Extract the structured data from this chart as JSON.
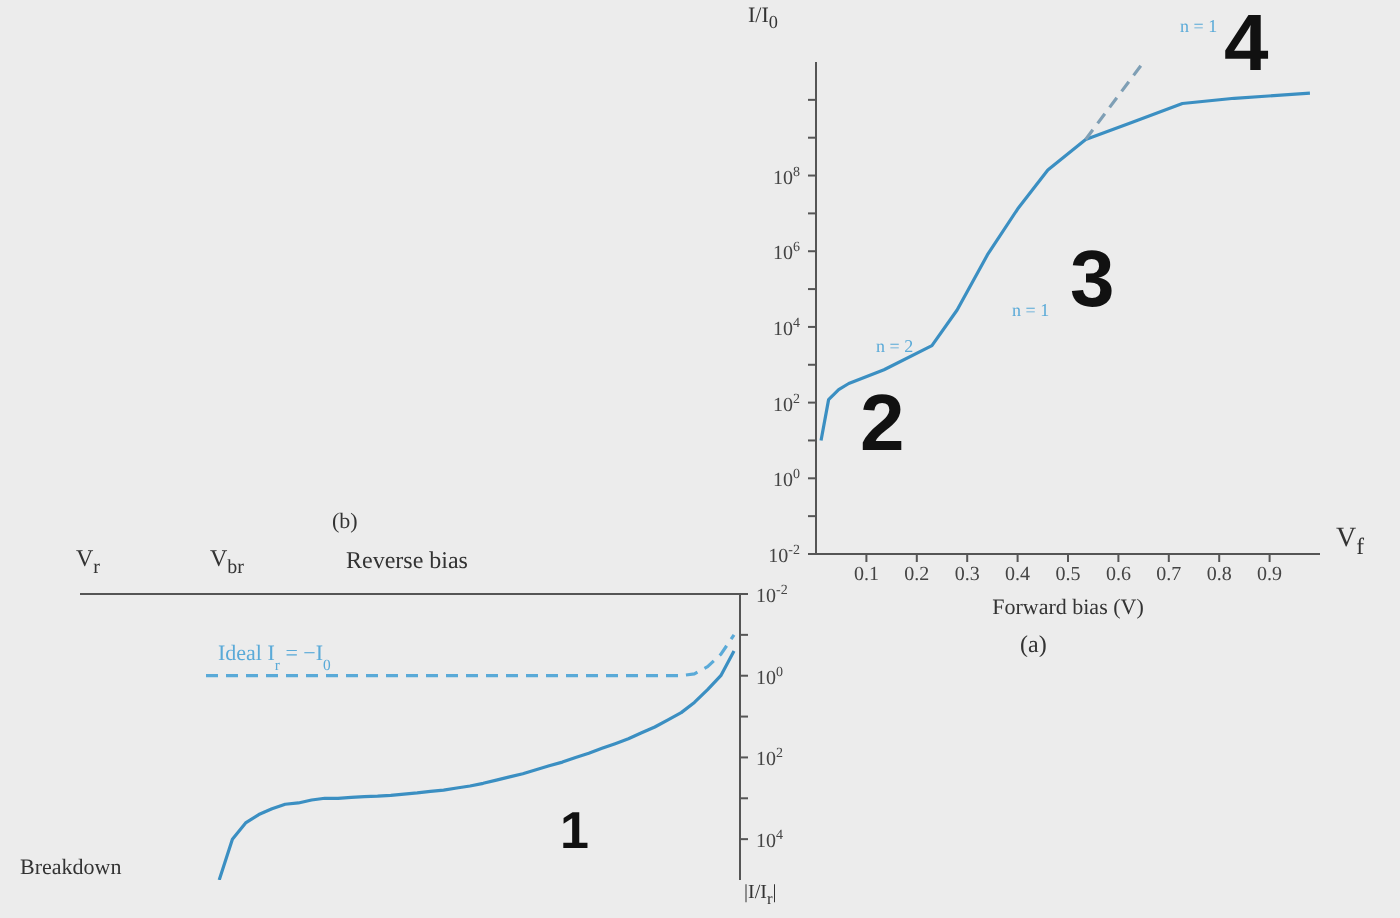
{
  "chart_data": [
    {
      "type": "line",
      "ylabel": "I/I$_{0}$",
      "xlabel": "Forward bias (V)",
      "log": "y",
      "xlim": [
        0,
        1
      ],
      "ylim": [
        0.01,
        100000000000
      ],
      "xticks": [
        0.1,
        0.2,
        0.3,
        0.4,
        0.5,
        0.6,
        0.7,
        0.8,
        0.9
      ],
      "yticks": [
        {
          "value": 0.01,
          "label": "10$^{-2}$"
        },
        {
          "value": 0.1,
          "label": null
        },
        {
          "value": 1,
          "label": "10$^{0}$"
        },
        {
          "value": 10,
          "label": null
        },
        {
          "value": 100,
          "label": "10$^{2}$"
        },
        {
          "value": 1000,
          "label": null
        },
        {
          "value": 10000,
          "label": "10$^{4}$"
        },
        {
          "value": 100000,
          "label": null
        },
        {
          "value": 1000000,
          "label": "10$^{6}$"
        },
        {
          "value": 10000000,
          "label": null
        },
        {
          "value": 100000000,
          "label": "10$^{8}$"
        },
        {
          "value": 1000000000,
          "label": null
        },
        {
          "value": 10000000000,
          "label": null
        }
      ],
      "series": [
        {
          "color": "#3b8fc2",
          "line_style": "solid",
          "x": [
            0.01,
            0.025,
            0.045,
            0.065,
            0.135,
            0.23,
            0.28,
            0.34,
            0.4,
            0.46,
            0.535,
            0.625,
            0.727,
            0.83,
            0.98
          ],
          "values": [
            10,
            120,
            220,
            320,
            740,
            3200,
            28000,
            800000,
            13000000,
            140000000,
            900000000,
            2500000000,
            8000000000,
            11000000000,
            15000000000
          ]
        },
        {
          "color": "#7f9fb5",
          "line_style": "dashed",
          "x": [
            0.535,
            0.65
          ],
          "values": [
            900000000,
            100000000000
          ]
        }
      ],
      "marker": "none",
      "annotations": [
        "n = 2",
        "n = 1",
        "n = 1",
        "2",
        "3",
        "4",
        "V$_{f}$",
        "(a)"
      ]
    },
    {
      "type": "line",
      "title": "(b)",
      "subtitle": "Reverse bias",
      "xlabel": "V$_{r}$",
      "ylabel": "|I/I$_{r}$|",
      "log": "y",
      "tick_labels": "y",
      "ylim": [
        100000,
        0.01
      ],
      "yticks": [
        {
          "value": 0.01,
          "label": "10$^{-2}$"
        },
        {
          "value": 0.1,
          "label": null
        },
        {
          "value": 1,
          "label": "10$^{0}$"
        },
        {
          "value": 10,
          "label": null
        },
        {
          "value": 100,
          "label": "10$^{2}$"
        },
        {
          "value": 1000,
          "label": null
        },
        {
          "value": 10000,
          "label": "10$^{4}$"
        }
      ],
      "categories": [
        null,
        null,
        null,
        null,
        null,
        null,
        null,
        null,
        null,
        null,
        null,
        null,
        null,
        null,
        null,
        null,
        null,
        null,
        null,
        null,
        null,
        null,
        null,
        null,
        null,
        null,
        null,
        null,
        null,
        null,
        null,
        null,
        null,
        null,
        null,
        null,
        null,
        null,
        null,
        null,
        null
      ],
      "series": [
        {
          "name": "Ideal  I$_{r}$ = −I$_{0}$",
          "color": "#5aaad8",
          "line_style": "dashed",
          "values": [
            1,
            1,
            1,
            1,
            1,
            1,
            1,
            1,
            1,
            1,
            1,
            1,
            1,
            1,
            1,
            1,
            1,
            1,
            1,
            1,
            1,
            1,
            1,
            1,
            1,
            1,
            1,
            1,
            1,
            1,
            1,
            1,
            1,
            1,
            1,
            1,
            1,
            0.9,
            0.6,
            0.3,
            0.1
          ]
        },
        {
          "color": "#3b8fc2",
          "line_style": "solid",
          "values": [
            null,
            100000,
            10000,
            4000,
            2500,
            1800,
            1400,
            1300,
            1100,
            1000,
            1000,
            950,
            910,
            890,
            850,
            790,
            740,
            680,
            630,
            560,
            500,
            430,
            360,
            300,
            250,
            200,
            160,
            130,
            100,
            79,
            60,
            46,
            35,
            25,
            18,
            12,
            8,
            4.5,
            2.2,
            1,
            0.25
          ]
        }
      ],
      "marker": "none",
      "annotations": [
        "V$_{br}$",
        "Breakdown",
        "1"
      ]
    }
  ]
}
